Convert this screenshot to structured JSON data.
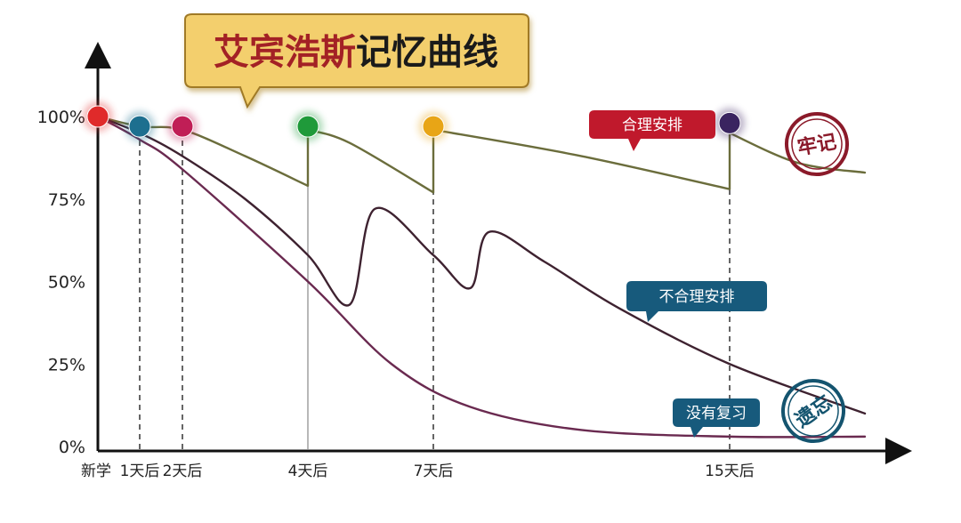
{
  "chart_data": {
    "type": "line",
    "title_part1": "艾宾浩斯",
    "title_part2": "记忆曲线",
    "x_ticks": [
      "新学",
      "1天后",
      "2天后",
      "4天后",
      "7天后",
      "15天后"
    ],
    "y_ticks": [
      "100%",
      "75%",
      "50%",
      "25%",
      "0%"
    ],
    "ylim": [
      0,
      100
    ],
    "series": [
      {
        "name": "合理安排",
        "points": [
          [
            0,
            100
          ],
          [
            1,
            97
          ],
          [
            2,
            96
          ],
          [
            3,
            88
          ],
          [
            4,
            79
          ],
          [
            4,
            96
          ],
          [
            5,
            92
          ],
          [
            7,
            77
          ],
          [
            7,
            96
          ],
          [
            11,
            88
          ],
          [
            15,
            78
          ],
          [
            15,
            95
          ],
          [
            16,
            86
          ],
          [
            17,
            83
          ]
        ],
        "color": "#6b6d3c"
      },
      {
        "name": "不合理安排",
        "points": [
          [
            0,
            100
          ],
          [
            1,
            95
          ],
          [
            2,
            88
          ],
          [
            3,
            75
          ],
          [
            4,
            58
          ],
          [
            5,
            43
          ],
          [
            5.6,
            72
          ],
          [
            7,
            58
          ],
          [
            8,
            48
          ],
          [
            8.5,
            65
          ],
          [
            10,
            56
          ],
          [
            12,
            42
          ],
          [
            15,
            25
          ],
          [
            17,
            10
          ]
        ],
        "color": "#3e2230"
      },
      {
        "name": "没有复习",
        "points": [
          [
            0,
            100
          ],
          [
            1,
            93
          ],
          [
            2,
            84
          ],
          [
            4,
            50
          ],
          [
            6,
            25
          ],
          [
            8,
            12
          ],
          [
            11,
            5
          ],
          [
            15,
            3
          ],
          [
            17,
            3
          ]
        ],
        "color": "#6a2a50"
      }
    ],
    "review_points": [
      {
        "x": 0,
        "y": 100,
        "color": "#e02a2a"
      },
      {
        "x": 1,
        "y": 97,
        "color": "#1d6f8f"
      },
      {
        "x": 2,
        "y": 97,
        "color": "#c01e56"
      },
      {
        "x": 4,
        "y": 97,
        "color": "#1f9a3a"
      },
      {
        "x": 7,
        "y": 97,
        "color": "#e8a516"
      },
      {
        "x": 15,
        "y": 98,
        "color": "#3a2460"
      }
    ],
    "stamps": [
      "牢记",
      "遗忘"
    ]
  }
}
